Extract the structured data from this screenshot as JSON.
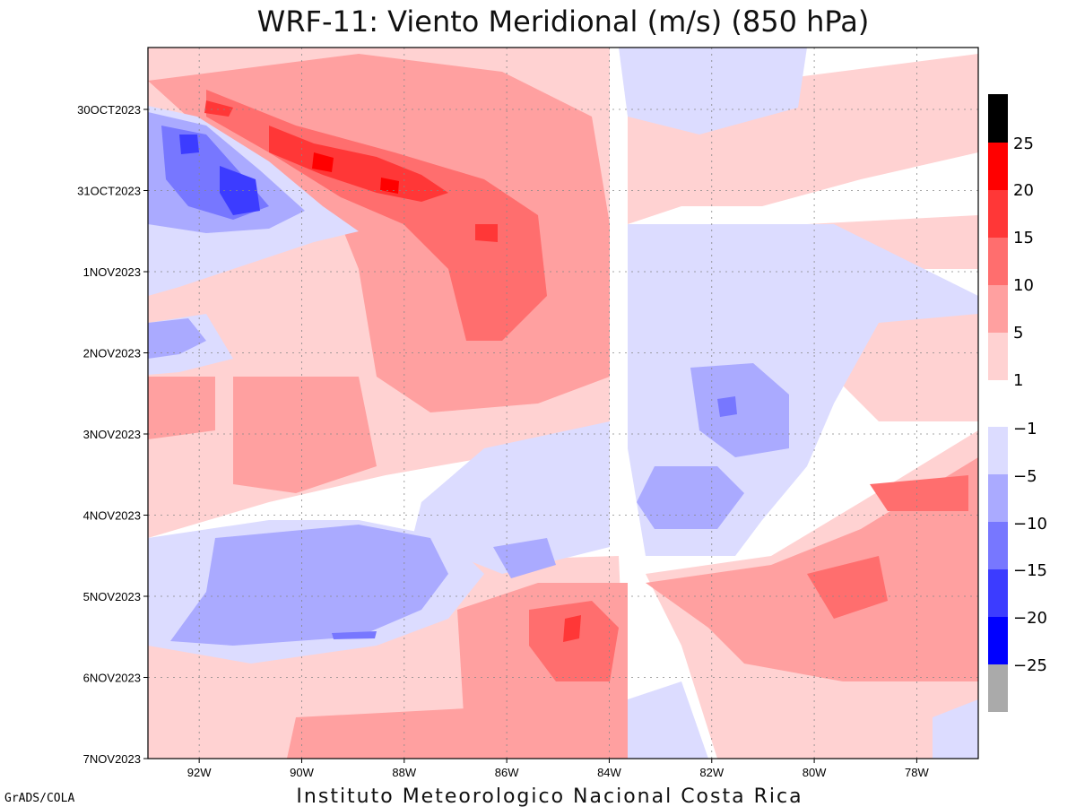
{
  "chart_data": {
    "type": "heatmap",
    "title": "WRF-11: Viento Meridional (m/s) (850 hPa)",
    "variable_units": "m/s",
    "pressure_level": "850 hPa",
    "x_axis": {
      "range_lon": [
        -93.0,
        -76.8
      ],
      "ticks": [
        {
          "value": -92,
          "label": "92W"
        },
        {
          "value": -90,
          "label": "90W"
        },
        {
          "value": -88,
          "label": "88W"
        },
        {
          "value": -86,
          "label": "86W"
        },
        {
          "value": -84,
          "label": "84W"
        },
        {
          "value": -82,
          "label": "82W"
        },
        {
          "value": -80,
          "label": "80W"
        },
        {
          "value": -78,
          "label": "78W"
        }
      ]
    },
    "y_axis": {
      "orientation": "time increases downward",
      "range_days_label": [
        "29OCT2023 12Z",
        "7NOV2023"
      ],
      "ticks": [
        {
          "value": 1,
          "label": "30OCT2023"
        },
        {
          "value": 2,
          "label": "31OCT2023"
        },
        {
          "value": 3,
          "label": "1NOV2023"
        },
        {
          "value": 4,
          "label": "2NOV2023"
        },
        {
          "value": 5,
          "label": "3NOV2023"
        },
        {
          "value": 6,
          "label": "4NOV2023"
        },
        {
          "value": 7,
          "label": "5NOV2023"
        },
        {
          "value": 8,
          "label": "6NOV2023"
        },
        {
          "value": 9,
          "label": "7NOV2023"
        }
      ]
    },
    "grid": "dotted",
    "colorbar": {
      "placement": "right",
      "levels": [
        {
          "label": "",
          "color": "#000000"
        },
        {
          "label": "25",
          "color": "#ff0000"
        },
        {
          "label": "20",
          "color": "#ff3737"
        },
        {
          "label": "15",
          "color": "#ff6e6e"
        },
        {
          "label": "10",
          "color": "#ffa0a0"
        },
        {
          "label": "5",
          "color": "#ffd2d2"
        },
        {
          "label": "1",
          "color": "#ffffff"
        },
        {
          "label": "-1",
          "color": "#dcdcff"
        },
        {
          "label": "-5",
          "color": "#aaaaff"
        },
        {
          "label": "-10",
          "color": "#7777ff"
        },
        {
          "label": "-15",
          "color": "#3c3cff"
        },
        {
          "label": "-20",
          "color": "#0000ff"
        },
        {
          "label": "-25",
          "color": "#aaaaaa"
        }
      ]
    }
  },
  "footer": {
    "credit": "GrADS/COLA",
    "institution": "Instituto Meteorologico Nacional Costa Rica"
  }
}
